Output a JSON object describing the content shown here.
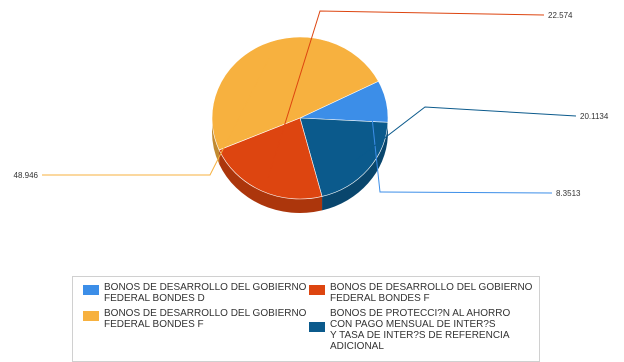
{
  "chart_data": {
    "type": "pie",
    "title": "",
    "series": [
      {
        "name": "BONOS DE DESARROLLO DEL GOBIERNO\nFEDERAL BONDES D",
        "value": 8.3513,
        "label": "8.3513",
        "color": "#3c8ee8"
      },
      {
        "name": "BONOS DE PROTECCI?N AL AHORRO\nCON PAGO MENSUAL DE INTER?S\nY TASA DE INTER?S DE REFERENCIA\nADICIONAL",
        "value": 20.1134,
        "label": "20.1134",
        "color": "#0b5a8c"
      },
      {
        "name": "BONOS DE DESARROLLO DEL GOBIERNO\nFEDERAL BONDES F",
        "value": 22.574,
        "label": "22.574",
        "color": "#dd4510"
      },
      {
        "name": "BONOS DE DESARROLLO DEL GOBIERNO\nFEDERAL BONDES F",
        "value": 48.946,
        "label": "48.946",
        "color": "#f7b13f"
      }
    ],
    "legend": "bottom"
  }
}
